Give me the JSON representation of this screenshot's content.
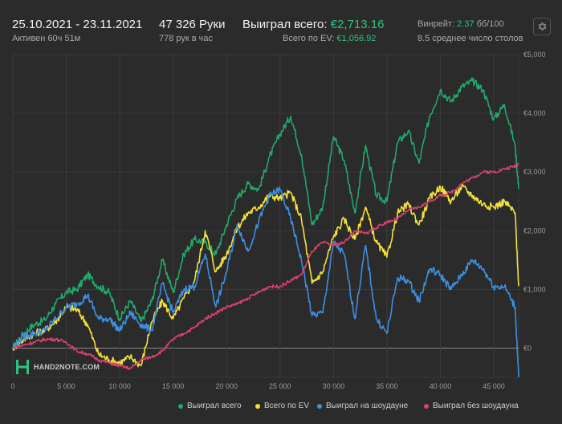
{
  "header": {
    "date_range": "25.10.2021 - 23.11.2021",
    "active_time": "Активен 60ч 51м",
    "hands": "47 326 Руки",
    "hands_per_hour": "778 рук в час",
    "won_total_label": "Выиграл всего:",
    "won_total_value": "€2,713.16",
    "ev_total_label": "Всего по EV:",
    "ev_total_value": "€1,056.92",
    "winrate_label": "Винрейт:",
    "winrate_value": "2.37",
    "winrate_unit": "бб/100",
    "avg_tables": "8.5 среднее число столов",
    "settings_icon": "gear-icon"
  },
  "logo": {
    "text": "HAND2NOTE.COM",
    "icon": "h2n-logo-icon"
  },
  "colors": {
    "background": "#2b2b2b",
    "grid": "#3b3b3b",
    "zero_line": "#8a8a8a",
    "won_total": "#21a96b",
    "ev_total": "#f4e23a",
    "won_showdown": "#3d8fe0",
    "won_no_showdown": "#d9416e"
  },
  "chart_data": {
    "type": "line",
    "x_ticks": [
      "0",
      "5 000",
      "10 000",
      "15 000",
      "20 000",
      "25 000",
      "30 000",
      "35 000",
      "40 000",
      "45 000"
    ],
    "y_ticks": [
      "€0",
      "€1,000",
      "€2,000",
      "€3,000",
      "€4,000",
      "€5,000"
    ],
    "xlim": [
      0,
      47326
    ],
    "ylim": [
      -500,
      5000
    ],
    "grid": true,
    "legend_position": "bottom",
    "x": [
      0,
      1000,
      2000,
      3000,
      4000,
      5000,
      6000,
      7000,
      8000,
      9000,
      10000,
      11000,
      12000,
      13000,
      14000,
      15000,
      16000,
      17000,
      18000,
      19000,
      20000,
      21000,
      22000,
      23000,
      24000,
      25000,
      26000,
      27000,
      28000,
      29000,
      30000,
      31000,
      32000,
      33000,
      34000,
      35000,
      36000,
      37000,
      38000,
      39000,
      40000,
      41000,
      42000,
      43000,
      44000,
      45000,
      46000,
      47000,
      47326
    ],
    "series": [
      {
        "name": "Выиграл всего",
        "color": "#21a96b",
        "values": [
          0,
          250,
          400,
          480,
          750,
          950,
          1000,
          1250,
          1050,
          950,
          500,
          800,
          450,
          800,
          1500,
          950,
          1600,
          1850,
          1800,
          1600,
          2100,
          2550,
          2800,
          2700,
          3250,
          3650,
          3950,
          3300,
          2100,
          2400,
          3600,
          3200,
          2300,
          3450,
          2600,
          2500,
          3500,
          3700,
          3150,
          3950,
          4400,
          4200,
          4450,
          4550,
          4400,
          3900,
          4150,
          3450,
          2713
        ]
      },
      {
        "name": "Всего по EV",
        "color": "#f4e23a",
        "values": [
          0,
          150,
          250,
          300,
          450,
          700,
          650,
          400,
          -100,
          -200,
          -250,
          -150,
          -300,
          450,
          800,
          500,
          850,
          1150,
          2000,
          1300,
          1600,
          2050,
          2300,
          2400,
          2600,
          2550,
          2650,
          2200,
          1100,
          1300,
          1900,
          2200,
          1850,
          2400,
          1800,
          1550,
          2300,
          2450,
          2100,
          2550,
          2750,
          2500,
          2750,
          2600,
          2450,
          2400,
          2500,
          2300,
          1057
        ]
      },
      {
        "name": "Выиграл на шоудауне",
        "color": "#3d8fe0",
        "values": [
          0,
          200,
          250,
          300,
          500,
          700,
          750,
          900,
          500,
          500,
          300,
          600,
          400,
          300,
          1100,
          600,
          1000,
          1050,
          1600,
          700,
          1300,
          2100,
          1650,
          2150,
          2600,
          2700,
          2200,
          1500,
          550,
          600,
          1800,
          1600,
          500,
          1750,
          500,
          250,
          1200,
          1150,
          800,
          1350,
          1250,
          1000,
          1250,
          1500,
          1350,
          1050,
          1050,
          700,
          -500
        ]
      },
      {
        "name": "Выиграл без шоудауна",
        "color": "#d9416e",
        "values": [
          0,
          50,
          100,
          150,
          150,
          100,
          -50,
          -100,
          -200,
          -250,
          -300,
          -350,
          -200,
          -150,
          -50,
          150,
          250,
          350,
          500,
          600,
          700,
          750,
          850,
          950,
          1050,
          1050,
          1150,
          1250,
          1650,
          1800,
          1750,
          1800,
          2000,
          1950,
          2050,
          2150,
          2200,
          2350,
          2400,
          2500,
          2600,
          2650,
          2800,
          2900,
          3000,
          3000,
          3050,
          3100,
          3150
        ]
      }
    ]
  }
}
